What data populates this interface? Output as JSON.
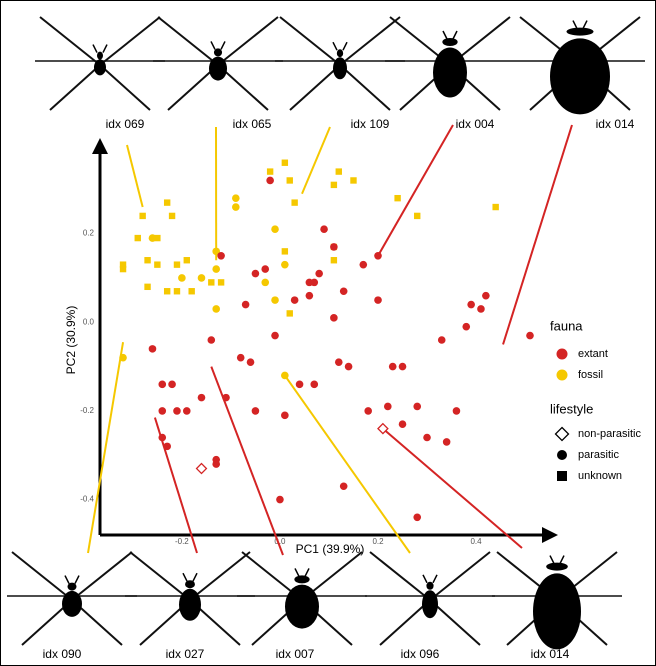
{
  "chart_data": {
    "type": "scatter",
    "xlabel": "PC1 (39.9%)",
    "ylabel": "PC2 (30.9%)",
    "xlim": [
      -0.367,
      0.561
    ],
    "ylim": [
      -0.48,
      0.4
    ],
    "xticks": [
      -0.2,
      {
        "value": 0,
        "label": "0.0"
      },
      0.2,
      0.4
    ],
    "yticks": [
      0.2,
      {
        "value": 0,
        "label": "0.0"
      },
      -0.2,
      -0.4
    ],
    "legend": {
      "fauna": {
        "title": "fauna",
        "items": [
          {
            "name": "extant",
            "color": "#d42424"
          },
          {
            "name": "fossil",
            "color": "#f5c800"
          }
        ]
      },
      "lifestyle": {
        "title": "lifestyle",
        "items": [
          {
            "name": "non-parasitic",
            "shape": "diamond"
          },
          {
            "name": "parasitic",
            "shape": "circle"
          },
          {
            "name": "unknown",
            "shape": "square"
          }
        ]
      }
    },
    "series": [
      {
        "color": "#f5c800",
        "shape": "square",
        "x": [
          -0.28,
          -0.23,
          -0.22,
          -0.29,
          -0.25,
          -0.32,
          -0.32,
          -0.27,
          -0.25,
          -0.21,
          -0.27,
          -0.23,
          -0.21,
          -0.18,
          -0.14,
          -0.19,
          -0.12,
          0.01,
          0.02,
          -0.02,
          0.12,
          0.15,
          0.11,
          0.24,
          0.28,
          0.44,
          0.03,
          0.01,
          0.02,
          0.11,
          0.11
        ],
        "y": [
          0.24,
          0.27,
          0.24,
          0.19,
          0.19,
          0.13,
          0.12,
          0.14,
          0.13,
          0.13,
          0.08,
          0.07,
          0.07,
          0.07,
          0.09,
          0.14,
          0.09,
          0.36,
          0.32,
          0.34,
          0.34,
          0.32,
          0.31,
          0.28,
          0.24,
          0.26,
          0.27,
          0.16,
          0.02,
          0.17,
          0.14
        ]
      },
      {
        "color": "#f5c800",
        "shape": "circle",
        "x": [
          -0.09,
          -0.09,
          -0.13,
          -0.13,
          -0.13,
          -0.01,
          0.01,
          -0.03,
          -0.01,
          0.01,
          -0.32,
          -0.26,
          -0.2,
          -0.16
        ],
        "y": [
          0.28,
          0.26,
          0.16,
          0.12,
          0.03,
          0.21,
          0.13,
          0.09,
          0.05,
          -0.12,
          -0.08,
          0.19,
          0.1,
          0.1
        ]
      },
      {
        "color": "#d42424",
        "shape": "circle",
        "x": [
          -0.02,
          0.09,
          0.2,
          0.2,
          0.11,
          0.08,
          -0.05,
          -0.12,
          -0.07,
          -0.03,
          0.03,
          0.06,
          0.07,
          0.13,
          0.17,
          0.39,
          0.42,
          0.41,
          0.38,
          0.51,
          0.33,
          0.23,
          0.25,
          0.12,
          0.14,
          0.07,
          0.04,
          -0.14,
          -0.26,
          -0.24,
          -0.22,
          -0.24,
          -0.21,
          -0.24,
          -0.23,
          -0.19,
          -0.16,
          -0.11,
          -0.05,
          0.01,
          0.0,
          0.13,
          0.18,
          0.22,
          0.28,
          0.25,
          0.3,
          0.34,
          0.36,
          0.28,
          -0.13,
          -0.13,
          -0.06,
          -0.08,
          -0.01,
          0.06,
          0.11
        ],
        "y": [
          0.32,
          0.21,
          0.15,
          0.05,
          0.17,
          0.11,
          0.11,
          0.15,
          0.04,
          0.12,
          0.05,
          0.06,
          0.09,
          0.07,
          0.13,
          0.04,
          0.06,
          0.03,
          -0.01,
          -0.03,
          -0.04,
          -0.1,
          -0.1,
          -0.09,
          -0.1,
          -0.14,
          -0.14,
          -0.04,
          -0.06,
          -0.14,
          -0.14,
          -0.2,
          -0.2,
          -0.26,
          -0.28,
          -0.2,
          -0.17,
          -0.17,
          -0.2,
          -0.21,
          -0.4,
          -0.37,
          -0.2,
          -0.19,
          -0.19,
          -0.23,
          -0.26,
          -0.27,
          -0.2,
          -0.44,
          -0.31,
          -0.32,
          -0.09,
          -0.08,
          -0.03,
          0.09,
          0.01
        ]
      },
      {
        "color": "#d42424",
        "shape": "diamond",
        "x": [
          -0.16,
          0.21
        ],
        "y": [
          -0.33,
          -0.24
        ]
      }
    ],
    "annotations": [
      {
        "label": "idx 069",
        "color": "#f5c800",
        "x": -0.28,
        "y": 0.26
      },
      {
        "label": "idx 065",
        "color": "#f5c800",
        "x": -0.13,
        "y": 0.14
      },
      {
        "label": "idx 109",
        "color": "#f5c800",
        "x": 0.045,
        "y": 0.29
      },
      {
        "label": "idx 004",
        "color": "#d42424",
        "x": 0.2,
        "y": 0.15
      },
      {
        "label": "idx 014",
        "color": "#d42424",
        "x": 0.455,
        "y": -0.05
      },
      {
        "label": "idx 090",
        "color": "#f5c800",
        "x": -0.32,
        "y": -0.045
      },
      {
        "label": "idx 027",
        "color": "#d42424",
        "x": -0.255,
        "y": -0.215
      },
      {
        "label": "idx 007",
        "color": "#d42424",
        "x": -0.14,
        "y": -0.1
      },
      {
        "label": "idx 096",
        "color": "#f5c800",
        "x": 0.01,
        "y": -0.12
      },
      {
        "label": "idx 014",
        "color": "#d42424",
        "x": 0.21,
        "y": -0.24
      }
    ]
  }
}
